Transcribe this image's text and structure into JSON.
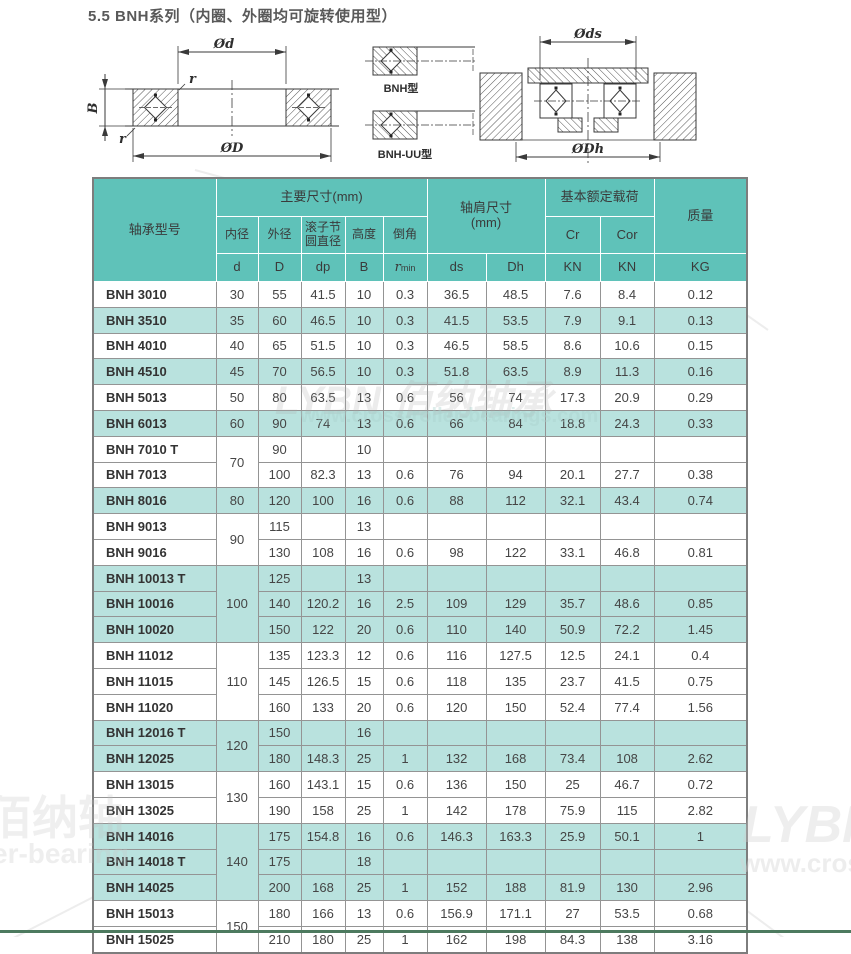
{
  "page": {
    "title": "5.5  BNH系列（内圈、外圈均可旋转使用型）"
  },
  "colors": {
    "header_teal": "#5fc2b9",
    "row_teal": "#b9e2de",
    "border_gray": "#949494",
    "footer_green": "#4d7a5f"
  },
  "drawings": {
    "left": {
      "dim_top": "Ød",
      "dim_bottom": "ØD",
      "dim_height": "B",
      "chamfer_top": "r",
      "chamfer_bottom": "r"
    },
    "middle": {
      "type_top": "BNH型",
      "type_bottom": "BNH-UU型"
    },
    "right": {
      "dim_top": "Øds",
      "dim_bottom": "ØDh"
    }
  },
  "table": {
    "header": {
      "model": "轴承型号",
      "main_dims": "主要尺寸(mm)",
      "shoulder": "轴肩尺寸",
      "shoulder_unit": "(mm)",
      "load": "基本额定载荷",
      "mass": "质量",
      "sub_labels": [
        "内径",
        "外径",
        "滚子节圆直径",
        "高度",
        "倒角",
        "Cr",
        "Cor"
      ],
      "units": [
        "d",
        "D",
        "dp",
        "B",
        "r",
        "ds",
        "Dh",
        "KN",
        "KN",
        "KG"
      ],
      "r_subscript": "min"
    },
    "rows": [
      {
        "model": "BNH 3010",
        "d": "30",
        "d_rowspan": 1,
        "D": "55",
        "dp": "41.5",
        "B": "10",
        "rmin": "0.3",
        "ds": "36.5",
        "Dh": "48.5",
        "Cr": "7.6",
        "Cor": "8.4",
        "KG": "0.12",
        "shaded": false
      },
      {
        "model": "BNH 3510",
        "d": "35",
        "d_rowspan": 1,
        "D": "60",
        "dp": "46.5",
        "B": "10",
        "rmin": "0.3",
        "ds": "41.5",
        "Dh": "53.5",
        "Cr": "7.9",
        "Cor": "9.1",
        "KG": "0.13",
        "shaded": true
      },
      {
        "model": "BNH 4010",
        "d": "40",
        "d_rowspan": 1,
        "D": "65",
        "dp": "51.5",
        "B": "10",
        "rmin": "0.3",
        "ds": "46.5",
        "Dh": "58.5",
        "Cr": "8.6",
        "Cor": "10.6",
        "KG": "0.15",
        "shaded": false
      },
      {
        "model": "BNH 4510",
        "d": "45",
        "d_rowspan": 1,
        "D": "70",
        "dp": "56.5",
        "B": "10",
        "rmin": "0.3",
        "ds": "51.8",
        "Dh": "63.5",
        "Cr": "8.9",
        "Cor": "11.3",
        "KG": "0.16",
        "shaded": true
      },
      {
        "model": "BNH 5013",
        "d": "50",
        "d_rowspan": 1,
        "D": "80",
        "dp": "63.5",
        "B": "13",
        "rmin": "0.6",
        "ds": "56",
        "Dh": "74",
        "Cr": "17.3",
        "Cor": "20.9",
        "KG": "0.29",
        "shaded": false
      },
      {
        "model": "BNH 6013",
        "d": "60",
        "d_rowspan": 1,
        "D": "90",
        "dp": "74",
        "B": "13",
        "rmin": "0.6",
        "ds": "66",
        "Dh": "84",
        "Cr": "18.8",
        "Cor": "24.3",
        "KG": "0.33",
        "shaded": true
      },
      {
        "model": "BNH 7010 T",
        "d": "70",
        "d_rowspan": 2,
        "D": "90",
        "dp": "",
        "B": "10",
        "rmin": "",
        "ds": "",
        "Dh": "",
        "Cr": "",
        "Cor": "",
        "KG": "",
        "shaded": false
      },
      {
        "model": "BNH 7013",
        "d": null,
        "D": "100",
        "dp": "82.3",
        "B": "13",
        "rmin": "0.6",
        "ds": "76",
        "Dh": "94",
        "Cr": "20.1",
        "Cor": "27.7",
        "KG": "0.38",
        "shaded": false
      },
      {
        "model": "BNH 8016",
        "d": "80",
        "d_rowspan": 1,
        "D": "120",
        "dp": "100",
        "B": "16",
        "rmin": "0.6",
        "ds": "88",
        "Dh": "112",
        "Cr": "32.1",
        "Cor": "43.4",
        "KG": "0.74",
        "shaded": true
      },
      {
        "model": "BNH 9013",
        "d": "90",
        "d_rowspan": 2,
        "D": "115",
        "dp": "",
        "B": "13",
        "rmin": "",
        "ds": "",
        "Dh": "",
        "Cr": "",
        "Cor": "",
        "KG": "",
        "shaded": false
      },
      {
        "model": "BNH 9016",
        "d": null,
        "D": "130",
        "dp": "108",
        "B": "16",
        "rmin": "0.6",
        "ds": "98",
        "Dh": "122",
        "Cr": "33.1",
        "Cor": "46.8",
        "KG": "0.81",
        "shaded": false
      },
      {
        "model": "BNH 10013 T",
        "d": "100",
        "d_rowspan": 3,
        "D": "125",
        "dp": "",
        "B": "13",
        "rmin": "",
        "ds": "",
        "Dh": "",
        "Cr": "",
        "Cor": "",
        "KG": "",
        "shaded": true
      },
      {
        "model": "BNH 10016",
        "d": null,
        "D": "140",
        "dp": "120.2",
        "B": "16",
        "rmin": "2.5",
        "ds": "109",
        "Dh": "129",
        "Cr": "35.7",
        "Cor": "48.6",
        "KG": "0.85",
        "shaded": true
      },
      {
        "model": "BNH 10020",
        "d": null,
        "D": "150",
        "dp": "122",
        "B": "20",
        "rmin": "0.6",
        "ds": "110",
        "Dh": "140",
        "Cr": "50.9",
        "Cor": "72.2",
        "KG": "1.45",
        "shaded": true
      },
      {
        "model": "BNH 11012",
        "d": "110",
        "d_rowspan": 3,
        "D": "135",
        "dp": "123.3",
        "B": "12",
        "rmin": "0.6",
        "ds": "116",
        "Dh": "127.5",
        "Cr": "12.5",
        "Cor": "24.1",
        "KG": "0.4",
        "shaded": false
      },
      {
        "model": "BNH 11015",
        "d": null,
        "D": "145",
        "dp": "126.5",
        "B": "15",
        "rmin": "0.6",
        "ds": "118",
        "Dh": "135",
        "Cr": "23.7",
        "Cor": "41.5",
        "KG": "0.75",
        "shaded": false
      },
      {
        "model": "BNH 11020",
        "d": null,
        "D": "160",
        "dp": "133",
        "B": "20",
        "rmin": "0.6",
        "ds": "120",
        "Dh": "150",
        "Cr": "52.4",
        "Cor": "77.4",
        "KG": "1.56",
        "shaded": false
      },
      {
        "model": "BNH 12016 T",
        "d": "120",
        "d_rowspan": 2,
        "D": "150",
        "dp": "",
        "B": "16",
        "rmin": "",
        "ds": "",
        "Dh": "",
        "Cr": "",
        "Cor": "",
        "KG": "",
        "shaded": true
      },
      {
        "model": "BNH 12025",
        "d": null,
        "D": "180",
        "dp": "148.3",
        "B": "25",
        "rmin": "1",
        "ds": "132",
        "Dh": "168",
        "Cr": "73.4",
        "Cor": "108",
        "KG": "2.62",
        "shaded": true
      },
      {
        "model": "BNH 13015",
        "d": "130",
        "d_rowspan": 2,
        "D": "160",
        "dp": "143.1",
        "B": "15",
        "rmin": "0.6",
        "ds": "136",
        "Dh": "150",
        "Cr": "25",
        "Cor": "46.7",
        "KG": "0.72",
        "shaded": false
      },
      {
        "model": "BNH 13025",
        "d": null,
        "D": "190",
        "dp": "158",
        "B": "25",
        "rmin": "1",
        "ds": "142",
        "Dh": "178",
        "Cr": "75.9",
        "Cor": "115",
        "KG": "2.82",
        "shaded": false
      },
      {
        "model": "BNH 14016",
        "d": "140",
        "d_rowspan": 3,
        "D": "175",
        "dp": "154.8",
        "B": "16",
        "rmin": "0.6",
        "ds": "146.3",
        "Dh": "163.3",
        "Cr": "25.9",
        "Cor": "50.1",
        "KG": "1",
        "shaded": true
      },
      {
        "model": "BNH 14018 T",
        "d": null,
        "D": "175",
        "dp": "",
        "B": "18",
        "rmin": "",
        "ds": "",
        "Dh": "",
        "Cr": "",
        "Cor": "",
        "KG": "",
        "shaded": true
      },
      {
        "model": "BNH 14025",
        "d": null,
        "D": "200",
        "dp": "168",
        "B": "25",
        "rmin": "1",
        "ds": "152",
        "Dh": "188",
        "Cr": "81.9",
        "Cor": "130",
        "KG": "2.96",
        "shaded": true
      },
      {
        "model": "BNH 15013",
        "d": "150",
        "d_rowspan": 2,
        "D": "180",
        "dp": "166",
        "B": "13",
        "rmin": "0.6",
        "ds": "156.9",
        "Dh": "171.1",
        "Cr": "27",
        "Cor": "53.5",
        "KG": "0.68",
        "shaded": false
      },
      {
        "model": "BNH 15025",
        "d": null,
        "D": "210",
        "dp": "180",
        "B": "25",
        "rmin": "1",
        "ds": "162",
        "Dh": "198",
        "Cr": "84.3",
        "Cor": "138",
        "KG": "3.16",
        "shaded": false
      }
    ]
  },
  "watermarks": {
    "center_main": "LYBN 佰纳轴承",
    "center_sub": "www.cross-roller-bearings.com",
    "left_main": "佰纳轴",
    "left_sub": "er-bearing",
    "right_main": "LYBN",
    "right_sub": "www.cross-r"
  }
}
